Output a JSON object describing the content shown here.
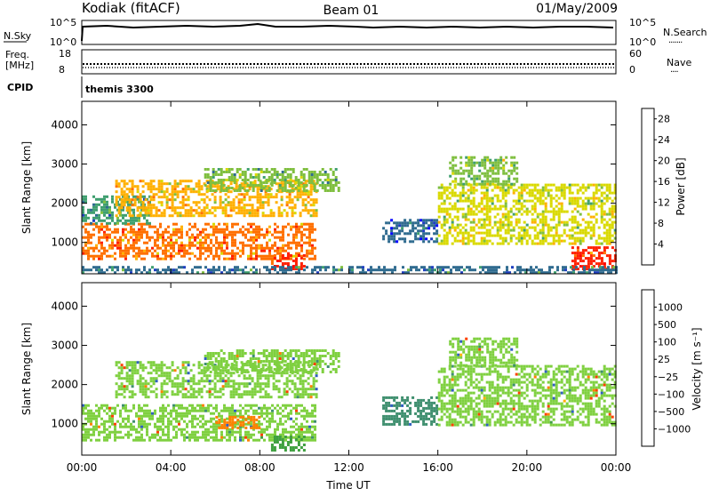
{
  "header": {
    "station": "Kodiak (fitACF)",
    "beam": "Beam 01",
    "date": "01/May/2009"
  },
  "strips": {
    "nsky_label": "N.Sky",
    "nsky_ticks": [
      "10^5",
      "10^0"
    ],
    "nsearch_label": "N.Search",
    "nsearch_ticks": [
      "10^5",
      "10^0"
    ],
    "freq_label": "Freq.",
    "freq_unit": "[MHz]",
    "freq_ticks": [
      "18",
      "8"
    ],
    "nave_label": "Nave",
    "nave_ticks": [
      "60",
      "0"
    ],
    "cpid_label": "CPID",
    "cpid_value": "themis 3300"
  },
  "chart_data": [
    {
      "type": "heatmap",
      "panel": "power",
      "xlabel": "Time UT",
      "ylabel": "Slant Range [km]",
      "xlim": [
        0,
        24
      ],
      "ylim": [
        200,
        4600
      ],
      "x_ticks": [
        "00:00",
        "04:00",
        "08:00",
        "12:00",
        "16:00",
        "20:00",
        "00:00"
      ],
      "y_ticks": [
        "1000",
        "2000",
        "3000",
        "4000"
      ],
      "colorbar": {
        "label": "Power [dB]",
        "ticks": [
          "4",
          "8",
          "12",
          "16",
          "20",
          "24",
          "28"
        ],
        "range": [
          0,
          30
        ],
        "colors": [
          "#0000ff",
          "#1f3fbf",
          "#2f6b8f",
          "#3f9f6f",
          "#7fbf3f",
          "#d9d900",
          "#ffb000",
          "#ff7000",
          "#ff2000",
          "#ff0000"
        ]
      },
      "echo_regions": [
        {
          "t_start": 0.0,
          "t_end": 10.5,
          "range_min": 600,
          "range_max": 1500,
          "power_db": 22
        },
        {
          "t_start": 0.0,
          "t_end": 3.0,
          "range_min": 1500,
          "range_max": 2200,
          "power_db": 10
        },
        {
          "t_start": 1.5,
          "t_end": 10.5,
          "range_min": 1700,
          "range_max": 2600,
          "power_db": 18
        },
        {
          "t_start": 5.5,
          "t_end": 11.5,
          "range_min": 2300,
          "range_max": 2900,
          "power_db": 12
        },
        {
          "t_start": 8.5,
          "t_end": 10.0,
          "range_min": 300,
          "range_max": 700,
          "power_db": 26
        },
        {
          "t_start": 13.5,
          "t_end": 16.0,
          "range_min": 1000,
          "range_max": 1600,
          "power_db": 6
        },
        {
          "t_start": 16.0,
          "t_end": 24.0,
          "range_min": 1000,
          "range_max": 2500,
          "power_db": 16
        },
        {
          "t_start": 16.5,
          "t_end": 19.5,
          "range_min": 2500,
          "range_max": 3200,
          "power_db": 14
        },
        {
          "t_start": 22.0,
          "t_end": 24.0,
          "range_min": 300,
          "range_max": 900,
          "power_db": 24
        },
        {
          "t_start": 0.0,
          "t_end": 24.0,
          "range_min": 200,
          "range_max": 400,
          "power_db": 8
        }
      ]
    },
    {
      "type": "heatmap",
      "panel": "velocity",
      "xlabel": "Time UT",
      "ylabel": "Slant Range [km]",
      "xlim": [
        0,
        24
      ],
      "ylim": [
        200,
        4600
      ],
      "x_ticks": [
        "00:00",
        "04:00",
        "08:00",
        "12:00",
        "16:00",
        "20:00",
        "00:00"
      ],
      "y_ticks": [
        "1000",
        "2000",
        "3000",
        "4000"
      ],
      "colorbar": {
        "label": "Velocity [m s⁻¹]",
        "ticks": [
          "1000",
          "500",
          "100",
          "25",
          "−25",
          "−100",
          "−500",
          "−1000"
        ],
        "colors": [
          "#ff0000",
          "#ff4000",
          "#ff8000",
          "#ffb000",
          "#c8c8c8",
          "#7fd040",
          "#3fa040",
          "#3f8f6f",
          "#2f5fbf",
          "#0000ff"
        ]
      },
      "echo_regions": [
        {
          "t_start": 0.0,
          "t_end": 10.5,
          "range_min": 600,
          "range_max": 1500,
          "velocity": 0
        },
        {
          "t_start": 6.0,
          "t_end": 8.0,
          "range_min": 900,
          "range_max": 1200,
          "velocity": -150
        },
        {
          "t_start": 1.5,
          "t_end": 10.5,
          "range_min": 1700,
          "range_max": 2600,
          "velocity": 0
        },
        {
          "t_start": 5.5,
          "t_end": 11.5,
          "range_min": 2300,
          "range_max": 2900,
          "velocity": 0
        },
        {
          "t_start": 8.5,
          "t_end": 10.0,
          "range_min": 300,
          "range_max": 700,
          "velocity": 60
        },
        {
          "t_start": 13.5,
          "t_end": 16.0,
          "range_min": 1000,
          "range_max": 1700,
          "velocity": 120
        },
        {
          "t_start": 16.0,
          "t_end": 24.0,
          "range_min": 1000,
          "range_max": 2500,
          "velocity": 0
        },
        {
          "t_start": 16.5,
          "t_end": 19.5,
          "range_min": 2500,
          "range_max": 3200,
          "velocity": 0
        }
      ]
    }
  ]
}
